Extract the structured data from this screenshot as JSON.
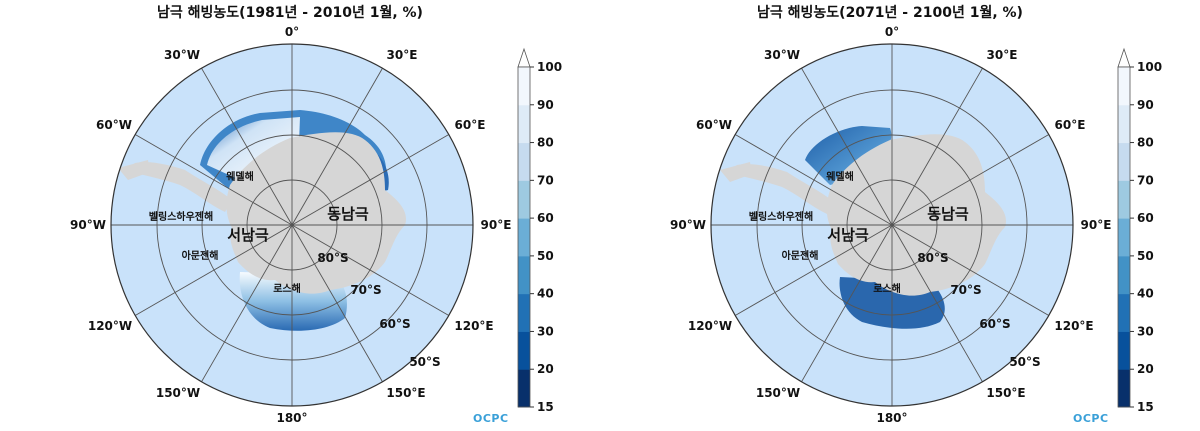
{
  "panels": [
    {
      "title": "남극 해빙농도(1981년 - 2010년 1월, %)",
      "logo": "OCPC"
    },
    {
      "title": "남극 해빙농도(2071년 - 2100년 1월, %)",
      "logo": "OCPC"
    }
  ],
  "longitude_labels": [
    "0°",
    "30°E",
    "60°E",
    "90°E",
    "120°E",
    "150°E",
    "180°",
    "150°W",
    "120°W",
    "90°W",
    "60°W",
    "30°W"
  ],
  "latitude_labels": [
    "80°S",
    "70°S",
    "60°S",
    "50°S"
  ],
  "regions": {
    "weddell": "웨델해",
    "bellingshausen": "벨링스하우젠해",
    "amundsen": "아문젠해",
    "ross": "로스해",
    "west_antarctica": "서남극",
    "east_antarctica": "동남극"
  },
  "colorbar": {
    "ticks": [
      "15",
      "20",
      "30",
      "40",
      "50",
      "60",
      "70",
      "80",
      "90",
      "100"
    ],
    "colors": [
      "#08306b",
      "#08519c",
      "#2171b5",
      "#4292c6",
      "#6baed6",
      "#9ecae1",
      "#c6dbef",
      "#deebf7",
      "#f2f7fd",
      "#ffffff"
    ]
  },
  "colors": {
    "ocean": "#c9e2fa",
    "land": "#d6d6d6",
    "grid": "#555555"
  }
}
